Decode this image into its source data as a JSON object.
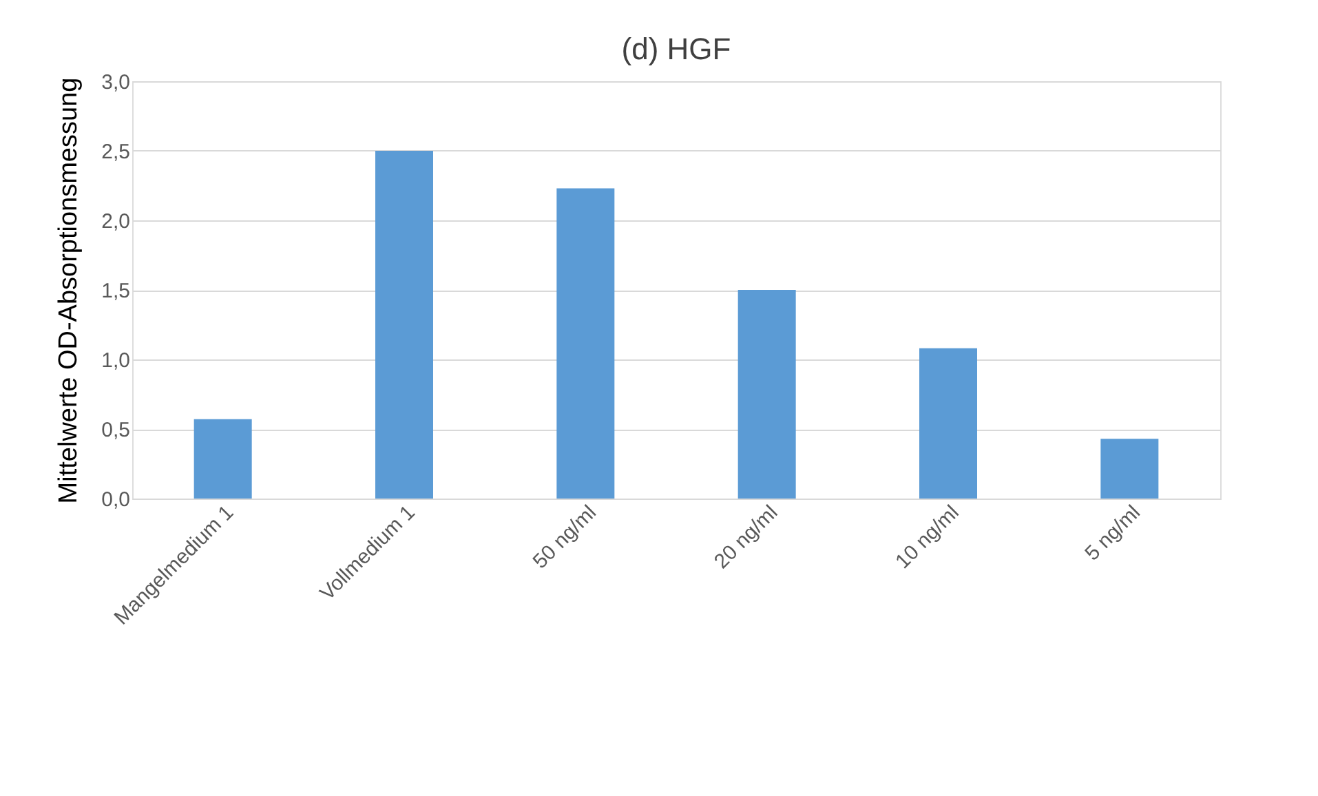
{
  "chart_data": {
    "type": "bar",
    "title": "(d) HGF",
    "ylabel": "Mittelwerte OD-Absorptionsmessung",
    "categories": [
      "Mangelmedium 1",
      "Vollmedium 1",
      "50 ng/ml",
      "20 ng/ml",
      "10 ng/ml",
      "5 ng/ml"
    ],
    "values": [
      0.57,
      2.5,
      2.23,
      1.5,
      1.08,
      0.43
    ],
    "color": "#5b9bd5",
    "ylim": [
      0,
      3.0
    ],
    "yticks": [
      {
        "value": 0,
        "label": "0,0"
      },
      {
        "value": 0.5,
        "label": "0,5"
      },
      {
        "value": 1.0,
        "label": "1,0"
      },
      {
        "value": 1.5,
        "label": "1,5"
      },
      {
        "value": 2.0,
        "label": "2,0"
      },
      {
        "value": 2.5,
        "label": "2,5"
      },
      {
        "value": 3.0,
        "label": "3,0"
      }
    ],
    "grid": "y"
  }
}
